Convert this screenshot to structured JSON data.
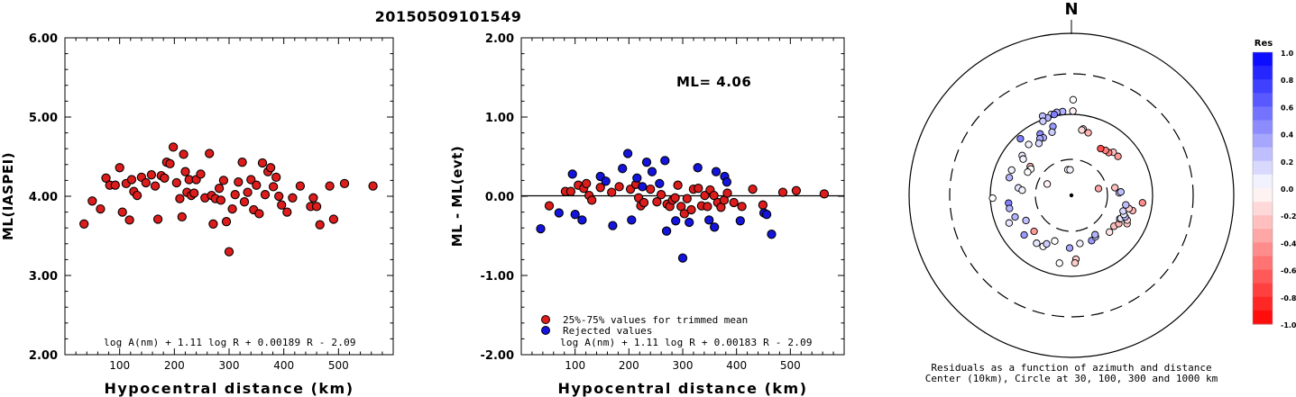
{
  "figure_title": "20150509101549",
  "chart_data": [
    {
      "type": "scatter",
      "xlabel": "Hypocentral distance (km)",
      "ylabel": "ML(IASPEI)",
      "xlim": [
        0,
        600
      ],
      "ylim": [
        2.0,
        6.0
      ],
      "xticks": [
        "100",
        "200",
        "300",
        "400",
        "500"
      ],
      "yticks": [
        "2.00",
        "3.00",
        "4.00",
        "5.00",
        "6.00"
      ],
      "formula": "log A(nm) + 1.11 log R + 0.00189 R - 2.09",
      "marker_color": "#dd1c1c",
      "series": [
        {
          "points": [
            [
              35,
              3.65
            ],
            [
              50,
              3.94
            ],
            [
              65,
              3.84
            ],
            [
              75,
              4.23
            ],
            [
              82,
              4.14
            ],
            [
              92,
              4.14
            ],
            [
              100,
              4.36
            ],
            [
              105,
              3.8
            ],
            [
              112,
              4.16
            ],
            [
              118,
              3.7
            ],
            [
              122,
              4.21
            ],
            [
              126,
              4.06
            ],
            [
              132,
              4.01
            ],
            [
              140,
              4.24
            ],
            [
              148,
              4.17
            ],
            [
              158,
              4.27
            ],
            [
              165,
              4.13
            ],
            [
              170,
              3.71
            ],
            [
              176,
              4.26
            ],
            [
              182,
              4.23
            ],
            [
              186,
              4.43
            ],
            [
              192,
              4.41
            ],
            [
              198,
              4.62
            ],
            [
              204,
              4.17
            ],
            [
              210,
              3.97
            ],
            [
              214,
              3.74
            ],
            [
              217,
              4.53
            ],
            [
              220,
              4.31
            ],
            [
              223,
              4.05
            ],
            [
              227,
              4.21
            ],
            [
              231,
              4.01
            ],
            [
              236,
              4.04
            ],
            [
              240,
              4.21
            ],
            [
              248,
              4.28
            ],
            [
              256,
              3.98
            ],
            [
              264,
              4.54
            ],
            [
              268,
              4.01
            ],
            [
              271,
              3.65
            ],
            [
              275,
              3.97
            ],
            [
              282,
              4.1
            ],
            [
              285,
              3.95
            ],
            [
              290,
              4.2
            ],
            [
              295,
              3.68
            ],
            [
              300,
              3.3
            ],
            [
              306,
              3.84
            ],
            [
              311,
              4.02
            ],
            [
              317,
              4.18
            ],
            [
              324,
              4.43
            ],
            [
              328,
              3.93
            ],
            [
              334,
              4.05
            ],
            [
              340,
              4.21
            ],
            [
              345,
              3.83
            ],
            [
              350,
              4.14
            ],
            [
              355,
              3.78
            ],
            [
              361,
              4.42
            ],
            [
              366,
              4.02
            ],
            [
              371,
              4.31
            ],
            [
              376,
              4.36
            ],
            [
              381,
              4.12
            ],
            [
              386,
              4.24
            ],
            [
              391,
              4.0
            ],
            [
              396,
              3.89
            ],
            [
              406,
              3.8
            ],
            [
              416,
              3.98
            ],
            [
              430,
              4.13
            ],
            [
              449,
              3.87
            ],
            [
              454,
              3.98
            ],
            [
              460,
              3.87
            ],
            [
              466,
              3.64
            ],
            [
              484,
              4.13
            ],
            [
              491,
              3.71
            ],
            [
              511,
              4.16
            ],
            [
              563,
              4.13
            ]
          ]
        }
      ]
    },
    {
      "type": "scatter",
      "xlabel": "Hypocentral distance (km)",
      "ylabel": "ML - ML(evt)",
      "xlim": [
        0,
        600
      ],
      "ylim": [
        -2.0,
        2.0
      ],
      "xticks": [
        "100",
        "200",
        "300",
        "400",
        "500"
      ],
      "yticks": [
        "-2.00",
        "-1.00",
        "0.00",
        "1.00",
        "2.00"
      ],
      "annotation": "ML= 4.06",
      "formula": "log A(nm) + 1.11 log R + 0.00183 R - 2.09",
      "legend_position": "bottom-left",
      "series": [
        {
          "name": "25%-75% values for trimmed mean",
          "color": "#dd1c1c",
          "points": [
            [
              52,
              -0.12
            ],
            [
              82,
              0.06
            ],
            [
              92,
              0.06
            ],
            [
              106,
              0.14
            ],
            [
              116,
              0.1
            ],
            [
              121,
              0.16
            ],
            [
              126,
              0.01
            ],
            [
              131,
              -0.05
            ],
            [
              147,
              0.11
            ],
            [
              168,
              0.05
            ],
            [
              182,
              0.12
            ],
            [
              203,
              0.09
            ],
            [
              213,
              0.15
            ],
            [
              218,
              -0.02
            ],
            [
              222,
              -0.12
            ],
            [
              228,
              -0.08
            ],
            [
              240,
              0.09
            ],
            [
              252,
              -0.07
            ],
            [
              260,
              0.02
            ],
            [
              271,
              -0.1
            ],
            [
              276,
              -0.13
            ],
            [
              281,
              -0.05
            ],
            [
              286,
              -0.02
            ],
            [
              291,
              0.14
            ],
            [
              297,
              -0.13
            ],
            [
              303,
              -0.22
            ],
            [
              308,
              -0.03
            ],
            [
              316,
              -0.17
            ],
            [
              320,
              0.09
            ],
            [
              329,
              0.1
            ],
            [
              335,
              -0.12
            ],
            [
              341,
              0.01
            ],
            [
              346,
              -0.13
            ],
            [
              351,
              0.08
            ],
            [
              358,
              0.01
            ],
            [
              365,
              -0.08
            ],
            [
              371,
              -0.14
            ],
            [
              377,
              -0.05
            ],
            [
              383,
              0.04
            ],
            [
              395,
              -0.08
            ],
            [
              410,
              -0.13
            ],
            [
              430,
              0.09
            ],
            [
              449,
              -0.11
            ],
            [
              486,
              0.05
            ],
            [
              511,
              0.07
            ],
            [
              563,
              0.03
            ]
          ]
        },
        {
          "name": "Rejected values",
          "color": "#1414dd",
          "points": [
            [
              36,
              -0.41
            ],
            [
              70,
              -0.21
            ],
            [
              95,
              0.28
            ],
            [
              100,
              -0.23
            ],
            [
              113,
              -0.3
            ],
            [
              147,
              0.25
            ],
            [
              157,
              0.19
            ],
            [
              170,
              -0.37
            ],
            [
              188,
              0.35
            ],
            [
              198,
              0.54
            ],
            [
              205,
              -0.3
            ],
            [
              215,
              0.23
            ],
            [
              225,
              0.12
            ],
            [
              233,
              0.43
            ],
            [
              243,
              0.31
            ],
            [
              257,
              0.16
            ],
            [
              267,
              0.45
            ],
            [
              270,
              -0.44
            ],
            [
              287,
              -0.31
            ],
            [
              300,
              -0.78
            ],
            [
              312,
              -0.33
            ],
            [
              328,
              0.36
            ],
            [
              349,
              -0.3
            ],
            [
              359,
              -0.39
            ],
            [
              362,
              0.31
            ],
            [
              378,
              0.25
            ],
            [
              382,
              0.18
            ],
            [
              407,
              -0.31
            ],
            [
              451,
              -0.21
            ],
            [
              456,
              -0.23
            ],
            [
              465,
              -0.48
            ]
          ]
        }
      ]
    },
    {
      "type": "scatter",
      "subtype": "polar",
      "north_label": "N",
      "center_note_line1": "Residuals as a function of azimuth and distance",
      "center_note_line2": "Center (10km), Circle at 30, 100, 300 and 1000 km",
      "rings_km": [
        30,
        100,
        300,
        1000
      ],
      "colorbar": {
        "title": "Res",
        "min": -1.0,
        "max": 1.0,
        "tick_labels": [
          "1.0",
          "0.8",
          "0.6",
          "0.4",
          "0.2",
          "0.0",
          "-0.2",
          "-0.4",
          "-0.6",
          "-0.8",
          "-1.0"
        ],
        "positive_color": "#0000ff",
        "negative_color": "#ff0000",
        "zero_color": "#ffffff"
      },
      "points_azimuth_distance_residual": [
        [
          1,
          590,
          0.0
        ],
        [
          1,
          520,
          -0.05
        ],
        [
          354,
          520,
          0.3
        ],
        [
          350,
          520,
          0.3
        ],
        [
          346,
          515,
          0.05
        ],
        [
          348,
          510,
          0.5
        ],
        [
          343,
          500,
          0.3
        ],
        [
          340,
          520,
          0.25
        ],
        [
          339,
          490,
          0.2
        ],
        [
          345,
          440,
          0.4
        ],
        [
          343,
          408,
          0.2
        ],
        [
          333,
          425,
          0.45
        ],
        [
          334,
          395,
          0.3
        ],
        [
          331,
          400,
          0.35
        ],
        [
          328,
          378,
          0.15
        ],
        [
          318,
          470,
          0.5
        ],
        [
          309,
          390,
          0.1
        ],
        [
          307,
          372,
          0.05
        ],
        [
          305,
          310,
          -0.3
        ],
        [
          303,
          298,
          0.0
        ],
        [
          298,
          305,
          0.0
        ],
        [
          293,
          400,
          0.05
        ],
        [
          286,
          398,
          0.3
        ],
        [
          278,
          330,
          0.1
        ],
        [
          276,
          305,
          0.05
        ],
        [
          268,
          486,
          0.0
        ],
        [
          263,
          390,
          0.5
        ],
        [
          258,
          390,
          0.3
        ],
        [
          249,
          372,
          0.3
        ],
        [
          246,
          420,
          0.1
        ],
        [
          241,
          320,
          0.25
        ],
        [
          230,
          380,
          0.4
        ],
        [
          226,
          320,
          -0.4
        ],
        [
          216,
          365,
          0.1
        ],
        [
          209,
          360,
          0.0
        ],
        [
          207,
          336,
          0.2
        ],
        [
          200,
          300,
          0.0
        ],
        [
          190,
          425,
          0.0
        ],
        [
          182,
          325,
          0.35
        ],
        [
          176,
          395,
          -0.2
        ],
        [
          177,
          418,
          -0.2
        ],
        [
          170,
          302,
          0.05
        ],
        [
          156,
          306,
          0.4
        ],
        [
          150,
          296,
          0.2
        ],
        [
          149,
          283,
          0.3
        ],
        [
          134,
          326,
          -0.1
        ],
        [
          126,
          324,
          -0.25
        ],
        [
          121,
          340,
          -0.3
        ],
        [
          117,
          385,
          -0.2
        ],
        [
          116,
          331,
          0.05
        ],
        [
          115,
          336,
          0.1
        ],
        [
          114,
          376,
          -0.15
        ],
        [
          112,
          358,
          0.3
        ],
        [
          110,
          344,
          0.05
        ],
        [
          107,
          333,
          0.15
        ],
        [
          104,
          388,
          -0.3
        ],
        [
          103,
          363,
          -0.2
        ],
        [
          100,
          340,
          0.25
        ],
        [
          96,
          440,
          -0.45
        ],
        [
          87,
          295,
          0.15
        ],
        [
          86,
          305,
          0.25
        ],
        [
          80,
          272,
          -0.25
        ],
        [
          76,
          172,
          -0.35
        ],
        [
          50,
          374,
          -0.4
        ],
        [
          44,
          370,
          -0.25
        ],
        [
          41,
          350,
          -0.5
        ],
        [
          37,
          348,
          -0.5
        ],
        [
          32,
          340,
          -0.7
        ],
        [
          15,
          400,
          -0.3
        ],
        [
          10,
          416,
          -0.2
        ],
        [
          9,
          408,
          -0.15
        ],
        [
          320,
          410,
          0.05
        ],
        [
          352,
          160,
          0.0
        ],
        [
          357,
          158,
          0.05
        ],
        [
          295,
          165,
          -0.05
        ]
      ]
    }
  ]
}
